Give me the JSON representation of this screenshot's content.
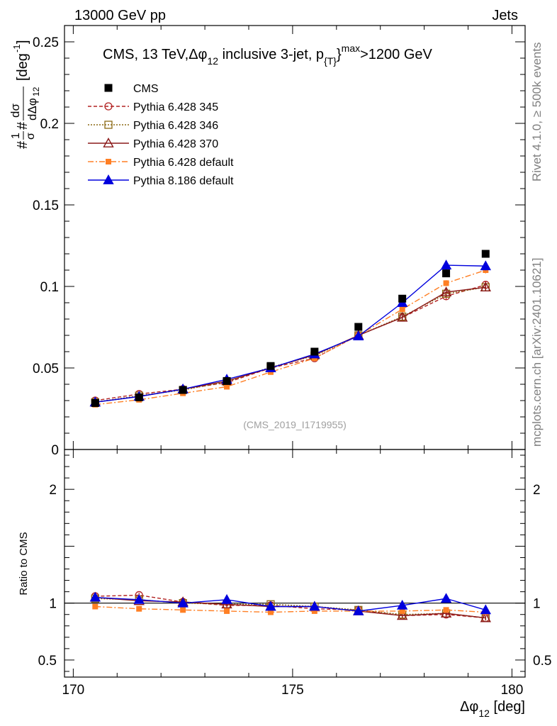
{
  "header": {
    "left": "13000 GeV pp",
    "right": "Jets",
    "rivet": "Rivet 4.1.0, ≥ 500k events",
    "mcplots": "mcplots.cern.ch [arXiv:2401.10621]",
    "analysis_id": "(CMS_2019_I1719955)"
  },
  "chart_data": [
    {
      "type": "line",
      "panel": "main",
      "title": "CMS, 13 TeV, Δφ_12 inclusive 3-jet, p_{T}^max > 1200 GeV",
      "title_parts": {
        "a": "CMS, 13 TeV,",
        "b": "Δφ",
        "c": "12",
        "d": " inclusive 3-jet, p",
        "e": "{T}",
        "f": "}",
        "g": "max",
        "h": ">1200 GeV"
      },
      "ylabel": "#1/σ # dσ/dΔφ_12 [deg^-1]",
      "ylabel_parts": {
        "hash1": "#",
        "one": "1",
        "sigma": "σ",
        "hash2": "#",
        "dsig": "dσ",
        "ddphi": "dΔφ",
        "sub": "12",
        "unit": "[deg",
        "exp": "-1",
        "close": "]"
      },
      "xlim": [
        169.8,
        180.3
      ],
      "ylim": [
        0,
        0.26
      ],
      "yticks": [
        0,
        0.05,
        0.1,
        0.15,
        0.2,
        0.25
      ],
      "ytick_labels": [
        "0",
        "0.05",
        "0.1",
        "0.15",
        "0.2",
        "0.25"
      ],
      "x": [
        170.5,
        171.5,
        172.5,
        173.5,
        174.5,
        175.5,
        176.5,
        177.5,
        178.5,
        179.4
      ],
      "series": [
        {
          "name": "CMS",
          "color": "#000000",
          "values": [
            0.0285,
            0.032,
            0.0365,
            0.042,
            0.0512,
            0.06,
            0.0752,
            0.0925,
            0.108,
            0.12
          ],
          "errors": [
            0.0006,
            0.0006,
            0.0007,
            0.0008,
            0.0009,
            0.001,
            0.0012,
            0.0015,
            0.002,
            0.0022
          ]
        },
        {
          "name": "Pythia 6.428 345",
          "color": "#b22222",
          "values": [
            0.03,
            0.034,
            0.037,
            0.041,
            0.05,
            0.056,
            0.07,
            0.081,
            0.094,
            0.101
          ],
          "errors": [
            0.0008,
            0.0008,
            0.0009,
            0.001,
            0.0011,
            0.0012,
            0.0014,
            0.0016,
            0.002,
            0.0022
          ]
        },
        {
          "name": "Pythia 6.428 346",
          "color": "#8b6914",
          "values": [
            0.029,
            0.033,
            0.0365,
            0.0415,
            0.0505,
            0.0575,
            0.07,
            0.0815,
            0.0955,
            0.0995
          ],
          "errors": [
            0.0008,
            0.0008,
            0.0009,
            0.001,
            0.0011,
            0.0012,
            0.0014,
            0.0016,
            0.002,
            0.0022
          ]
        },
        {
          "name": "Pythia 6.428 370",
          "color": "#8b1a1a",
          "values": [
            0.029,
            0.0325,
            0.037,
            0.042,
            0.05,
            0.058,
            0.07,
            0.081,
            0.0965,
            0.0995
          ],
          "errors": [
            0.0008,
            0.0008,
            0.0009,
            0.001,
            0.0011,
            0.0012,
            0.0014,
            0.0016,
            0.002,
            0.0022
          ]
        },
        {
          "name": "Pythia 6.428 default",
          "color": "#ff7f24",
          "values": [
            0.0275,
            0.0305,
            0.0345,
            0.0385,
            0.0475,
            0.056,
            0.07,
            0.086,
            0.102,
            0.11
          ],
          "errors": [
            0.0007,
            0.0007,
            0.0008,
            0.0009,
            0.001,
            0.0011,
            0.0013,
            0.0015,
            0.0018,
            0.002
          ]
        },
        {
          "name": "Pythia 8.186 default",
          "color": "#0000dd",
          "values": [
            0.029,
            0.0325,
            0.037,
            0.043,
            0.05,
            0.0585,
            0.0695,
            0.09,
            0.113,
            0.1125
          ],
          "errors": [
            0.0008,
            0.0008,
            0.0009,
            0.0012,
            0.0011,
            0.0012,
            0.0014,
            0.0018,
            0.0028,
            0.0026
          ]
        }
      ]
    },
    {
      "type": "line",
      "panel": "ratio",
      "ylabel": "Ratio to CMS",
      "xlabel": "Δφ_12 [deg]",
      "xlabel_parts": {
        "phi": "Δφ",
        "sub": "12",
        "unit": " [deg]"
      },
      "xlim": [
        169.8,
        180.3
      ],
      "ylim": [
        0.35,
        2.35
      ],
      "xticks": [
        170,
        175,
        180
      ],
      "xtick_labels": [
        "170",
        "175",
        "180"
      ],
      "yticks": [
        0.5,
        1,
        2
      ],
      "ytick_labels": [
        "0.5",
        "1",
        "2"
      ],
      "x": [
        170.5,
        171.5,
        172.5,
        173.5,
        174.5,
        175.5,
        176.5,
        177.5,
        178.5,
        179.4
      ],
      "series": [
        {
          "name": "Pythia 6.428 345",
          "values": [
            1.06,
            1.07,
            1.01,
            0.98,
            0.98,
            0.95,
            0.94,
            0.89,
            0.9,
            0.87
          ],
          "errors": [
            0.02,
            0.02,
            0.02,
            0.02,
            0.02,
            0.02,
            0.02,
            0.02,
            0.02,
            0.02
          ]
        },
        {
          "name": "Pythia 6.428 346",
          "values": [
            1.04,
            1.03,
            1.0,
            0.99,
            0.99,
            0.97,
            0.94,
            0.9,
            0.91,
            0.87
          ],
          "errors": [
            0.02,
            0.02,
            0.02,
            0.02,
            0.02,
            0.02,
            0.02,
            0.02,
            0.02,
            0.02
          ]
        },
        {
          "name": "Pythia 6.428 370",
          "values": [
            1.05,
            1.02,
            1.01,
            0.99,
            0.97,
            0.97,
            0.93,
            0.89,
            0.91,
            0.87
          ],
          "errors": [
            0.02,
            0.02,
            0.02,
            0.02,
            0.02,
            0.02,
            0.02,
            0.02,
            0.02,
            0.02
          ]
        },
        {
          "name": "Pythia 6.428 default",
          "values": [
            0.97,
            0.95,
            0.94,
            0.93,
            0.92,
            0.93,
            0.93,
            0.93,
            0.94,
            0.92
          ],
          "errors": [
            0.02,
            0.02,
            0.02,
            0.02,
            0.02,
            0.02,
            0.02,
            0.02,
            0.02,
            0.02
          ]
        },
        {
          "name": "Pythia 8.186 default",
          "values": [
            1.05,
            1.03,
            1.0,
            1.03,
            0.97,
            0.97,
            0.93,
            0.98,
            1.04,
            0.94
          ],
          "errors": [
            0.02,
            0.02,
            0.02,
            0.04,
            0.02,
            0.02,
            0.02,
            0.02,
            0.03,
            0.02
          ]
        }
      ]
    }
  ]
}
